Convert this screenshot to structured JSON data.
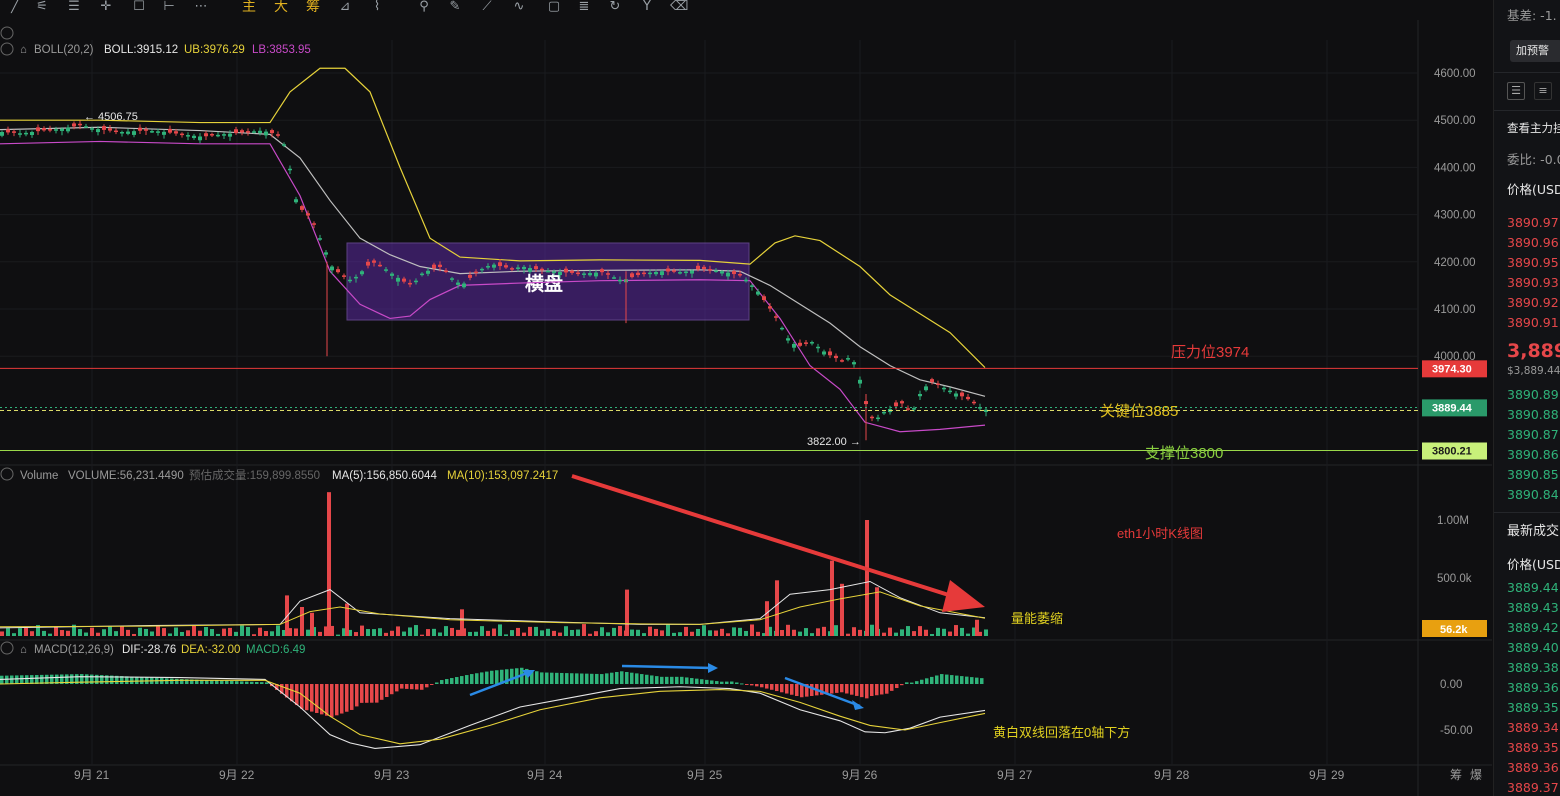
{
  "toolbar": {
    "items": [
      "line-tool",
      "draw-tool",
      "grid-tool",
      "crosshair-tool",
      "rect-tool",
      "measure-tool",
      "more-tool",
      "主",
      "大",
      "筹",
      "ruler-tool",
      "brush-tool",
      "pin-tool",
      "pencil-tool",
      "path-tool",
      "wave-tool",
      "text-tool",
      "fib-tool",
      "magnet-tool",
      "fork-tool",
      "trash-tool"
    ]
  },
  "boll": {
    "label": "BOLL(20,2)",
    "boll": "BOLL:3915.12",
    "ub": "UB:3976.29",
    "lb": "LB:3853.95"
  },
  "volume": {
    "label": "Volume",
    "vol": "VOLUME:56,231.4490",
    "est": "预估成交量:159,899.8550",
    "ma5": "MA(5):156,850.6044",
    "ma10": "MA(10):153,097.2417"
  },
  "macd": {
    "label": "MACD(12,26,9)",
    "dif": "DIF:-28.76",
    "dea": "DEA:-32.00",
    "macd": "MACD:6.49"
  },
  "annotations": {
    "consolidation": "横盘",
    "resistance": "压力位3974",
    "key": "关键位3885",
    "support": "支撑位3800",
    "title": "eth1小时K线图",
    "vol_shrink": "量能萎缩",
    "macd_note": "黄白双线回落在0轴下方",
    "high_label": "← 4506.75",
    "low_label": "3822.00 →"
  },
  "price_tags": {
    "resistance": "3974.30",
    "current": "3889.44",
    "support": "3800.21",
    "volume": "56.2k"
  },
  "chart_data": [
    {
      "type": "candlestick",
      "title": "eth1小时K线图",
      "x_ticks": [
        "9月 21",
        "9月 22",
        "9月 23",
        "9月 24",
        "9月 25",
        "9月 26",
        "9月 27",
        "9月 28",
        "9月 29"
      ],
      "y_ticks": [
        4600,
        4500,
        4400,
        4300,
        4200,
        4100,
        4000
      ],
      "ylim": [
        3750,
        4660
      ],
      "lines": {
        "resistance": 3974.3,
        "key": 3885,
        "support": 3800.21
      },
      "high": 4506.75,
      "low": 3822.0,
      "last": 3889.44,
      "close_path": [
        [
          0,
          4475
        ],
        [
          20,
          4472
        ],
        [
          40,
          4478
        ],
        [
          60,
          4482
        ],
        [
          80,
          4490
        ],
        [
          90,
          4483
        ],
        [
          100,
          4480
        ],
        [
          120,
          4475
        ],
        [
          140,
          4478
        ],
        [
          160,
          4476
        ],
        [
          180,
          4470
        ],
        [
          200,
          4465
        ],
        [
          220,
          4470
        ],
        [
          240,
          4474
        ],
        [
          260,
          4478
        ],
        [
          275,
          4470
        ],
        [
          285,
          4440
        ],
        [
          292,
          4340
        ],
        [
          300,
          4310
        ],
        [
          310,
          4290
        ],
        [
          320,
          4240
        ],
        [
          330,
          4190
        ],
        [
          340,
          4170
        ],
        [
          350,
          4160
        ],
        [
          360,
          4180
        ],
        [
          370,
          4200
        ],
        [
          380,
          4190
        ],
        [
          390,
          4175
        ],
        [
          400,
          4160
        ],
        [
          410,
          4150
        ],
        [
          420,
          4175
        ],
        [
          430,
          4185
        ],
        [
          440,
          4190
        ],
        [
          450,
          4165
        ],
        [
          460,
          4150
        ],
        [
          470,
          4170
        ],
        [
          480,
          4185
        ],
        [
          490,
          4195
        ],
        [
          500,
          4190
        ],
        [
          510,
          4185
        ],
        [
          520,
          4190
        ],
        [
          540,
          4182
        ],
        [
          560,
          4178
        ],
        [
          580,
          4175
        ],
        [
          600,
          4178
        ],
        [
          620,
          4160
        ],
        [
          640,
          4175
        ],
        [
          660,
          4180
        ],
        [
          680,
          4178
        ],
        [
          700,
          4185
        ],
        [
          720,
          4180
        ],
        [
          740,
          4170
        ],
        [
          755,
          4140
        ],
        [
          765,
          4110
        ],
        [
          775,
          4080
        ],
        [
          785,
          4040
        ],
        [
          795,
          4020
        ],
        [
          810,
          4030
        ],
        [
          825,
          4005
        ],
        [
          840,
          3990
        ],
        [
          850,
          4000
        ],
        [
          858,
          3950
        ],
        [
          865,
          3890
        ],
        [
          872,
          3860
        ],
        [
          880,
          3880
        ],
        [
          890,
          3890
        ],
        [
          900,
          3900
        ],
        [
          910,
          3880
        ],
        [
          920,
          3930
        ],
        [
          930,
          3945
        ],
        [
          940,
          3935
        ],
        [
          950,
          3925
        ],
        [
          960,
          3915
        ],
        [
          970,
          3905
        ],
        [
          980,
          3889
        ]
      ],
      "boll_mid": [
        [
          0,
          4480
        ],
        [
          100,
          4485
        ],
        [
          200,
          4478
        ],
        [
          270,
          4470
        ],
        [
          300,
          4420
        ],
        [
          330,
          4330
        ],
        [
          360,
          4250
        ],
        [
          390,
          4215
        ],
        [
          420,
          4190
        ],
        [
          460,
          4175
        ],
        [
          520,
          4180
        ],
        [
          600,
          4182
        ],
        [
          700,
          4183
        ],
        [
          740,
          4180
        ],
        [
          770,
          4150
        ],
        [
          800,
          4110
        ],
        [
          830,
          4070
        ],
        [
          860,
          4020
        ],
        [
          890,
          3980
        ],
        [
          920,
          3950
        ],
        [
          950,
          3935
        ],
        [
          985,
          3915
        ]
      ],
      "boll_ub": [
        [
          0,
          4500
        ],
        [
          100,
          4500
        ],
        [
          200,
          4495
        ],
        [
          270,
          4495
        ],
        [
          290,
          4560
        ],
        [
          320,
          4610
        ],
        [
          345,
          4610
        ],
        [
          370,
          4560
        ],
        [
          400,
          4400
        ],
        [
          430,
          4250
        ],
        [
          460,
          4210
        ],
        [
          520,
          4202
        ],
        [
          600,
          4204
        ],
        [
          700,
          4203
        ],
        [
          750,
          4195
        ],
        [
          775,
          4240
        ],
        [
          795,
          4255
        ],
        [
          820,
          4245
        ],
        [
          860,
          4190
        ],
        [
          890,
          4130
        ],
        [
          920,
          4090
        ],
        [
          950,
          4050
        ],
        [
          985,
          3976
        ]
      ],
      "boll_lb": [
        [
          0,
          4450
        ],
        [
          100,
          4455
        ],
        [
          200,
          4450
        ],
        [
          270,
          4450
        ],
        [
          300,
          4340
        ],
        [
          330,
          4180
        ],
        [
          360,
          4110
        ],
        [
          390,
          4080
        ],
        [
          410,
          4085
        ],
        [
          430,
          4120
        ],
        [
          460,
          4150
        ],
        [
          520,
          4155
        ],
        [
          600,
          4160
        ],
        [
          700,
          4162
        ],
        [
          750,
          4160
        ],
        [
          780,
          4080
        ],
        [
          810,
          3980
        ],
        [
          840,
          3930
        ],
        [
          865,
          3860
        ],
        [
          900,
          3840
        ],
        [
          940,
          3845
        ],
        [
          985,
          3854
        ]
      ]
    },
    {
      "type": "bar",
      "title": "Volume",
      "y_ticks": [
        "1.00M",
        "500.0k"
      ],
      "ylim": [
        0,
        1200000
      ],
      "x_values": [
        285,
        300,
        310,
        327,
        345,
        460,
        625,
        765,
        775,
        830,
        840,
        865,
        875,
        975,
        984
      ],
      "values": [
        350000,
        250000,
        200000,
        1240000,
        280000,
        230000,
        400000,
        300000,
        480000,
        650000,
        450000,
        1000000,
        420000,
        140000,
        56231
      ],
      "ma5": [
        [
          0,
          70000
        ],
        [
          150,
          90000
        ],
        [
          280,
          100000
        ],
        [
          300,
          300000
        ],
        [
          330,
          400000
        ],
        [
          360,
          200000
        ],
        [
          450,
          150000
        ],
        [
          560,
          120000
        ],
        [
          640,
          100000
        ],
        [
          700,
          100000
        ],
        [
          760,
          150000
        ],
        [
          790,
          360000
        ],
        [
          830,
          400000
        ],
        [
          870,
          470000
        ],
        [
          900,
          330000
        ],
        [
          940,
          200000
        ],
        [
          985,
          157000
        ]
      ],
      "ma10": [
        [
          0,
          80000
        ],
        [
          150,
          85000
        ],
        [
          280,
          100000
        ],
        [
          310,
          210000
        ],
        [
          340,
          250000
        ],
        [
          380,
          190000
        ],
        [
          450,
          140000
        ],
        [
          560,
          115000
        ],
        [
          640,
          105000
        ],
        [
          700,
          100000
        ],
        [
          760,
          140000
        ],
        [
          800,
          250000
        ],
        [
          840,
          320000
        ],
        [
          880,
          380000
        ],
        [
          920,
          260000
        ],
        [
          985,
          153000
        ]
      ]
    },
    {
      "type": "line",
      "title": "MACD(12,26,9)",
      "y_ticks": [
        "0.00",
        "-50.00"
      ],
      "ylim": [
        -80,
        30
      ],
      "dif": [
        [
          0,
          5
        ],
        [
          80,
          8
        ],
        [
          180,
          7
        ],
        [
          265,
          5
        ],
        [
          300,
          -25
        ],
        [
          330,
          -55
        ],
        [
          350,
          -64
        ],
        [
          375,
          -70
        ],
        [
          420,
          -66
        ],
        [
          470,
          -45
        ],
        [
          520,
          -25
        ],
        [
          570,
          -15
        ],
        [
          620,
          -5
        ],
        [
          680,
          -3
        ],
        [
          730,
          -5
        ],
        [
          760,
          -10
        ],
        [
          800,
          -28
        ],
        [
          840,
          -40
        ],
        [
          865,
          -52
        ],
        [
          885,
          -53
        ],
        [
          910,
          -48
        ],
        [
          940,
          -36
        ],
        [
          985,
          -28.76
        ]
      ],
      "dea": [
        [
          0,
          0
        ],
        [
          80,
          2
        ],
        [
          180,
          4
        ],
        [
          265,
          4
        ],
        [
          300,
          -10
        ],
        [
          330,
          -35
        ],
        [
          360,
          -55
        ],
        [
          400,
          -65
        ],
        [
          440,
          -60
        ],
        [
          490,
          -45
        ],
        [
          540,
          -28
        ],
        [
          600,
          -15
        ],
        [
          660,
          -8
        ],
        [
          720,
          -6
        ],
        [
          760,
          -8
        ],
        [
          800,
          -20
        ],
        [
          840,
          -35
        ],
        [
          870,
          -45
        ],
        [
          905,
          -50
        ],
        [
          940,
          -42
        ],
        [
          985,
          -32.0
        ]
      ]
    }
  ],
  "sidebar": {
    "top_label": "基差: -1.",
    "alert_btn": "加预警",
    "main_flow": "查看主力挂",
    "ratio": "委比: -0.0",
    "price_header": "价格(USD",
    "asks": [
      "3890.97",
      "3890.96",
      "3890.95",
      "3890.93",
      "3890.92",
      "3890.91"
    ],
    "last_price": "3,889.",
    "last_sub": "$3,889.44",
    "bids": [
      "3890.89",
      "3890.88",
      "3890.87",
      "3890.86",
      "3890.85",
      "3890.84"
    ],
    "trades_title": "最新成交",
    "trades_header": "价格(USDT",
    "trades": [
      [
        "3889.44",
        "g"
      ],
      [
        "3889.43",
        "g"
      ],
      [
        "3889.42",
        "g"
      ],
      [
        "3889.40",
        "g"
      ],
      [
        "3889.38",
        "g"
      ],
      [
        "3889.36",
        "g"
      ],
      [
        "3889.35",
        "g"
      ],
      [
        "3889.34",
        "r"
      ],
      [
        "3889.35",
        "r"
      ],
      [
        "3889.36",
        "r"
      ],
      [
        "3889.37",
        "r"
      ]
    ]
  }
}
